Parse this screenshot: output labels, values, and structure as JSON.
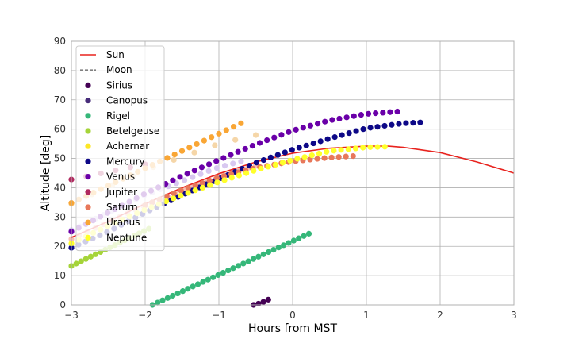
{
  "chart_data": {
    "type": "scatter",
    "xlabel": "Hours from MST",
    "ylabel": "Altitude [deg]",
    "xlim": [
      -3,
      3
    ],
    "ylim": [
      0,
      90
    ],
    "xticks": [
      -3,
      -2,
      -1,
      0,
      1,
      2,
      3
    ],
    "yticks": [
      0,
      10,
      20,
      30,
      40,
      50,
      60,
      70,
      80,
      90
    ],
    "grid": true,
    "legend_position": "upper-left",
    "series": [
      {
        "name": "Sun",
        "kind": "line",
        "color": "#e8231e",
        "x": [
          -3.0,
          -2.5,
          -2.0,
          -1.5,
          -1.0,
          -0.5,
          0.0,
          0.5,
          1.0,
          1.3,
          1.5,
          2.0,
          2.5,
          3.0
        ],
        "y": [
          23.0,
          28.5,
          34.5,
          40.0,
          44.8,
          48.8,
          51.8,
          53.5,
          54.2,
          54.2,
          53.8,
          52.0,
          48.8,
          45.0
        ]
      },
      {
        "name": "Moon",
        "kind": "dashed",
        "color": "#808080",
        "x": [],
        "y": []
      },
      {
        "name": "Sirius",
        "kind": "points",
        "color": "#440154",
        "x": [
          -0.53,
          -0.45,
          -0.38,
          -0.33
        ],
        "y": [
          0.0,
          0.5,
          1.2,
          1.8
        ]
      },
      {
        "name": "Canopus",
        "kind": "points",
        "color": "#472c7a",
        "x": [],
        "y": []
      },
      {
        "name": "Rigel",
        "kind": "points",
        "color": "#35b779",
        "x": [
          -1.9,
          0.22
        ],
        "y": [
          0.0,
          24.3
        ],
        "n": 32
      },
      {
        "name": "Betelgeuse",
        "kind": "points",
        "color": "#a5d439",
        "x": [
          -3.0,
          -1.95
        ],
        "y": [
          13.3,
          26.0
        ],
        "n": 17
      },
      {
        "name": "Achernar",
        "kind": "points",
        "color": "#fde725",
        "x": [],
        "y": []
      },
      {
        "name": "Mercury",
        "kind": "points",
        "color": "#0d0887",
        "x": [
          -3.0,
          -2.5,
          -2.0,
          -1.5,
          -1.0,
          -0.5,
          0.0,
          0.5,
          1.0,
          1.5,
          1.73
        ],
        "y": [
          19.5,
          25.0,
          31.5,
          37.5,
          43.0,
          48.5,
          53.0,
          56.8,
          60.3,
          62.0,
          62.3
        ],
        "n": 50
      },
      {
        "name": "Venus",
        "kind": "points",
        "color": "#6a00a8",
        "x": [
          -3.0,
          -2.5,
          -2.0,
          -1.5,
          -1.0,
          -0.5,
          0.0,
          0.5,
          1.0,
          1.42
        ],
        "y": [
          25.0,
          31.5,
          38.0,
          44.0,
          49.5,
          54.8,
          59.5,
          63.0,
          65.2,
          66.0
        ],
        "n": 46
      },
      {
        "name": "Jupiter",
        "kind": "points",
        "color": "#b12a60",
        "x": [
          -3.0,
          -2.0
        ],
        "y": [
          42.8,
          48.0
        ],
        "n": 6
      },
      {
        "name": "Saturn",
        "kind": "points",
        "color": "#e8785a",
        "x": [
          -2.0,
          -1.5,
          -1.0,
          -0.5,
          0.0,
          0.5,
          0.82
        ],
        "y": [
          34.0,
          39.2,
          43.5,
          46.8,
          49.0,
          50.3,
          50.8
        ],
        "n": 30
      },
      {
        "name": "Uranus",
        "kind": "points",
        "color": "#f9a635",
        "x": [
          -3.0,
          -0.7
        ],
        "y": [
          34.8,
          62.0
        ],
        "n": 24
      },
      {
        "name": "Neptune",
        "kind": "points",
        "color": "#ffff2a",
        "x": [
          -3.0,
          -2.5,
          -2.0,
          -1.5,
          -1.0,
          -0.5,
          0.0,
          0.5,
          1.0,
          1.25
        ],
        "y": [
          21.0,
          27.0,
          32.5,
          37.5,
          42.0,
          46.0,
          49.5,
          52.5,
          53.8,
          54.0
        ],
        "n": 44
      }
    ],
    "faded_bands": [
      {
        "color": "#d8c8f0",
        "x": [
          -3.0,
          -2.0,
          -1.0,
          -0.7
        ],
        "y": [
          25.5,
          37.5,
          47.0,
          49.0
        ],
        "n": 22
      },
      {
        "color": "#f6c0b4",
        "x": [
          -3.0,
          -2.0,
          -1.0,
          -0.5
        ],
        "y": [
          22.5,
          34.0,
          44.0,
          47.5
        ],
        "n": 24
      },
      {
        "color": "#f5d6a8",
        "x": [
          -3.0,
          -2.0,
          -1.0,
          -0.5
        ],
        "y": [
          34.5,
          46.0,
          55.0,
          58.0
        ],
        "n": 10
      }
    ]
  }
}
